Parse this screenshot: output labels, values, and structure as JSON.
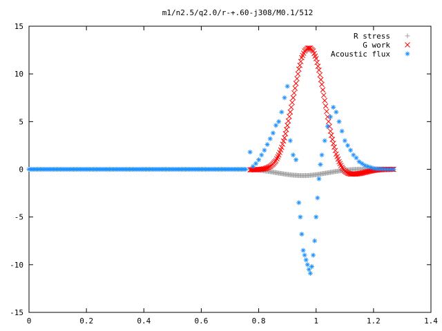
{
  "chart_data": {
    "type": "scatter",
    "title": "m1/n2.5/q2.0/r-+.60-j308/M0.1/512",
    "xlabel": "",
    "ylabel": "",
    "xlim": [
      0,
      1.4
    ],
    "ylim": [
      -15,
      15
    ],
    "x_ticks": [
      "0",
      "0.2",
      "0.4",
      "0.6",
      "0.8",
      "1",
      "1.2",
      "1.4"
    ],
    "y_ticks": [
      "15",
      "10",
      "5",
      "0",
      "-5",
      "-10",
      "-15"
    ],
    "grid": false,
    "legend_position": "top-right",
    "series": [
      {
        "name": "R stress",
        "marker": "+",
        "color": "#a0a0a0",
        "x": [
          0.77,
          0.78,
          0.79,
          0.8,
          0.81,
          0.82,
          0.83,
          0.84,
          0.85,
          0.86,
          0.87,
          0.88,
          0.89,
          0.9,
          0.91,
          0.92,
          0.93,
          0.94,
          0.95,
          0.96,
          0.97,
          0.98,
          0.99,
          1.0,
          1.01,
          1.02,
          1.03,
          1.04,
          1.05,
          1.06,
          1.07,
          1.08,
          1.09,
          1.1,
          1.11,
          1.12,
          1.13,
          1.14,
          1.15,
          1.16,
          1.17,
          1.18,
          1.19,
          1.2,
          1.21,
          1.22,
          1.23,
          1.24,
          1.25,
          1.26,
          1.27
        ],
        "y": [
          0.0,
          -0.02,
          -0.05,
          -0.08,
          -0.12,
          -0.16,
          -0.2,
          -0.25,
          -0.3,
          -0.35,
          -0.4,
          -0.45,
          -0.5,
          -0.54,
          -0.58,
          -0.61,
          -0.63,
          -0.65,
          -0.66,
          -0.66,
          -0.65,
          -0.63,
          -0.6,
          -0.56,
          -0.52,
          -0.47,
          -0.42,
          -0.37,
          -0.32,
          -0.27,
          -0.22,
          -0.18,
          -0.14,
          -0.1,
          -0.07,
          -0.04,
          -0.02,
          0.0,
          0.01,
          0.02,
          0.03,
          0.04,
          0.04,
          0.04,
          0.04,
          0.03,
          0.03,
          0.02,
          0.01,
          0.0,
          0.0
        ]
      },
      {
        "name": "G work",
        "marker": "x",
        "color": "#ff0000",
        "x": [
          0.77,
          0.78,
          0.79,
          0.8,
          0.81,
          0.82,
          0.83,
          0.84,
          0.85,
          0.86,
          0.87,
          0.88,
          0.89,
          0.9,
          0.91,
          0.92,
          0.93,
          0.94,
          0.95,
          0.96,
          0.97,
          0.98,
          0.99,
          1.0,
          1.01,
          1.02,
          1.03,
          1.04,
          1.05,
          1.06,
          1.07,
          1.08,
          1.09,
          1.1,
          1.11,
          1.12,
          1.13,
          1.14,
          1.15,
          1.16,
          1.17,
          1.18,
          1.19,
          1.2,
          1.21,
          1.22,
          1.23,
          1.24,
          1.25,
          1.26,
          1.27
        ],
        "y": [
          -0.05,
          -0.05,
          -0.04,
          -0.02,
          0.0,
          0.05,
          0.15,
          0.3,
          0.55,
          0.9,
          1.5,
          2.3,
          3.3,
          4.6,
          6.0,
          7.5,
          9.0,
          10.5,
          11.7,
          12.4,
          12.7,
          12.7,
          12.4,
          11.6,
          10.4,
          8.9,
          7.2,
          5.5,
          4.0,
          2.7,
          1.6,
          0.8,
          0.2,
          -0.2,
          -0.4,
          -0.5,
          -0.5,
          -0.5,
          -0.45,
          -0.4,
          -0.32,
          -0.25,
          -0.18,
          -0.12,
          -0.08,
          -0.05,
          -0.03,
          -0.02,
          -0.01,
          0.0,
          0.0
        ]
      },
      {
        "name": "Acoustic flux",
        "marker": "*",
        "color": "#1e90ff",
        "x": [
          0.0,
          0.02,
          0.04,
          0.06,
          0.08,
          0.1,
          0.12,
          0.14,
          0.16,
          0.18,
          0.2,
          0.22,
          0.24,
          0.26,
          0.28,
          0.3,
          0.32,
          0.34,
          0.36,
          0.38,
          0.4,
          0.42,
          0.44,
          0.46,
          0.48,
          0.5,
          0.52,
          0.54,
          0.56,
          0.58,
          0.6,
          0.62,
          0.64,
          0.66,
          0.68,
          0.7,
          0.72,
          0.74,
          0.76,
          0.77,
          0.78,
          0.79,
          0.8,
          0.81,
          0.82,
          0.83,
          0.84,
          0.85,
          0.86,
          0.87,
          0.88,
          0.89,
          0.9,
          0.91,
          0.92,
          0.93,
          0.94,
          0.945,
          0.95,
          0.955,
          0.96,
          0.965,
          0.97,
          0.975,
          0.98,
          0.985,
          0.99,
          0.995,
          1.0,
          1.005,
          1.01,
          1.015,
          1.02,
          1.03,
          1.04,
          1.05,
          1.06,
          1.07,
          1.08,
          1.09,
          1.1,
          1.11,
          1.12,
          1.13,
          1.14,
          1.15,
          1.16,
          1.17,
          1.18,
          1.19,
          1.2,
          1.21,
          1.22,
          1.23,
          1.24,
          1.25,
          1.26,
          1.27
        ],
        "y": [
          0,
          0,
          0,
          0,
          0,
          0,
          0,
          0,
          0,
          0,
          0,
          0,
          0,
          0,
          0,
          0,
          0,
          0,
          0,
          0,
          0,
          0,
          0,
          0,
          0,
          0,
          0,
          0,
          0,
          0,
          0,
          0,
          0,
          0,
          0,
          0,
          0,
          0,
          0.05,
          1.8,
          0.3,
          0.6,
          1.0,
          1.5,
          2.0,
          2.6,
          3.2,
          3.8,
          4.6,
          5.0,
          6.0,
          7.5,
          8.7,
          3.0,
          1.5,
          1.0,
          -3.5,
          -5.0,
          -6.8,
          -8.5,
          -9.0,
          -9.5,
          -10.0,
          -10.5,
          -10.9,
          -10.2,
          -9.0,
          -7.5,
          -5.0,
          -3.0,
          -1.0,
          0.5,
          1.5,
          3.0,
          4.5,
          5.5,
          6.5,
          6.0,
          5.0,
          4.0,
          3.0,
          2.5,
          2.0,
          1.5,
          1.2,
          0.8,
          0.6,
          0.4,
          0.3,
          0.2,
          0.1,
          0.05,
          0.02,
          0.01,
          0.0,
          0.0,
          0.0,
          0.0
        ]
      }
    ]
  }
}
